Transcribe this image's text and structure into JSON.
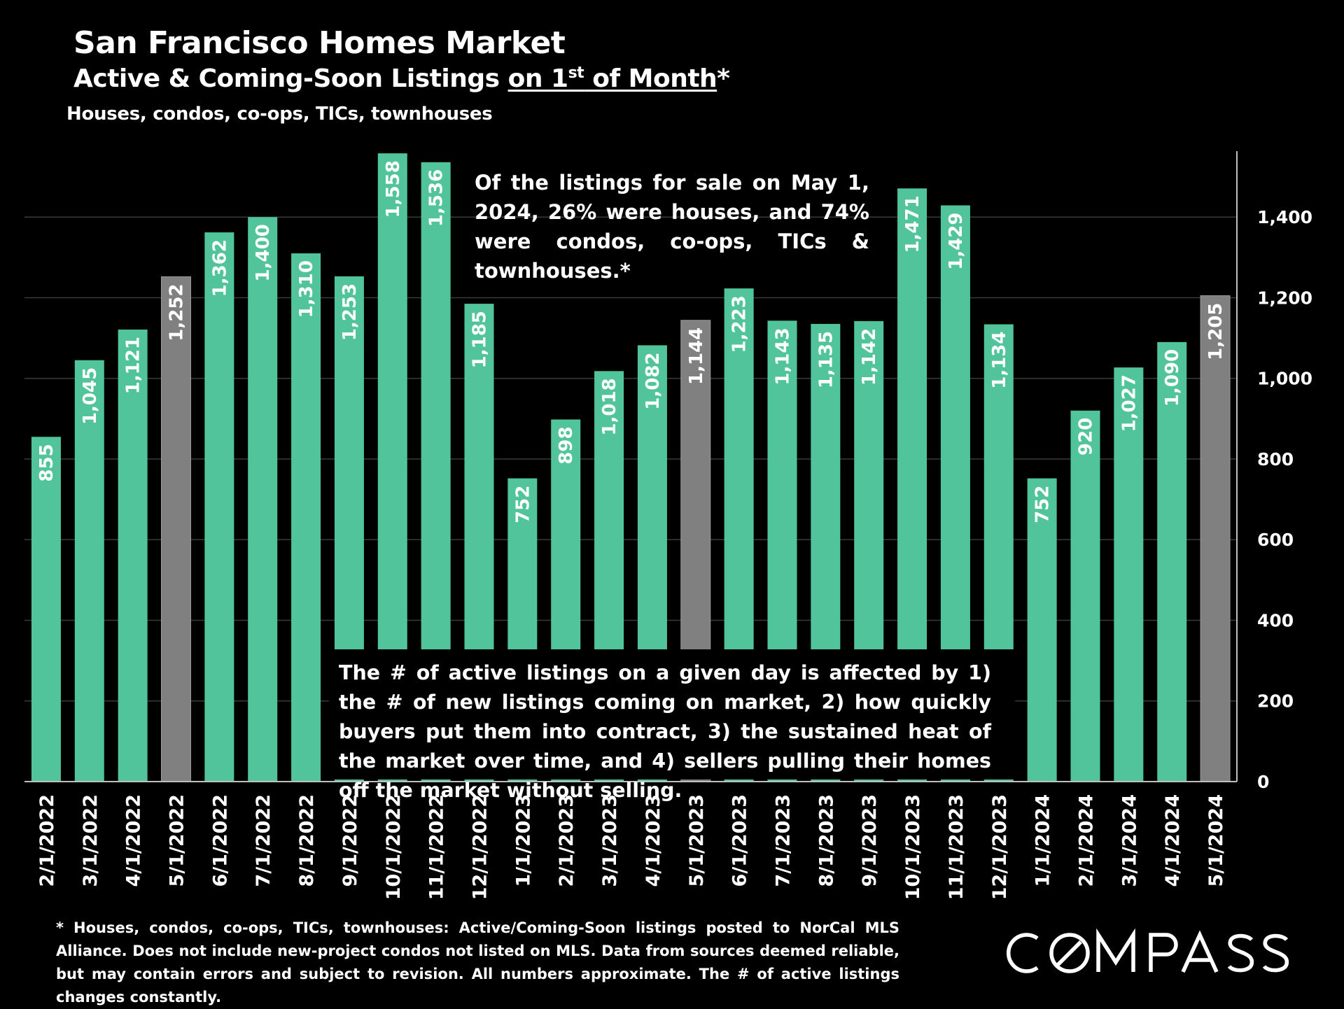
{
  "title": "San Francisco Homes Market",
  "subtitle": {
    "prefix": "Active & Coming-Soon Listings ",
    "underline_main": "on 1",
    "underline_sup": "st",
    "underline_end": " of Month",
    "suffix": "*"
  },
  "caption": "Houses, condos, co-ops, TICs, townhouses",
  "annotations": {
    "may_mix": "Of the listings for sale on May 1, 2024, 26% were houses, and 74% were condos, co-ops, TICs & townhouses.*",
    "factors": "The # of active listings on a given day is affected by 1) the # of new listings coming on market, 2) how quickly buyers put them into contract, 3) the sustained heat of the market over time, and 4) sellers pulling their homes off the market without selling."
  },
  "footnote": "* Houses, condos, co-ops, TICs, townhouses: Active/Coming-Soon listings posted to NorCal MLS Alliance. Does not include new-project condos not listed on MLS. Data from sources deemed reliable, but may contain errors and subject to revision. All numbers approximate. The # of active listings changes constantly.",
  "brand": {
    "logo_text": "COMPASS",
    "logo_letters": [
      "C",
      "O",
      "M",
      "P",
      "A",
      "S",
      "S"
    ]
  },
  "colors": {
    "background": "#000000",
    "bar": "#52c49b",
    "bar_highlight": "#808080",
    "text": "#ffffff",
    "grid": "#3a3a3a"
  },
  "chart_data": {
    "type": "bar",
    "categories": [
      "2/1/2022",
      "3/1/2022",
      "4/1/2022",
      "5/1/2022",
      "6/1/2022",
      "7/1/2022",
      "8/1/2022",
      "9/1/2022",
      "10/1/2022",
      "11/1/2022",
      "12/1/2022",
      "1/1/2023",
      "2/1/2023",
      "3/1/2023",
      "4/1/2023",
      "5/1/2023",
      "6/1/2023",
      "7/1/2023",
      "8/1/2023",
      "9/1/2023",
      "10/1/2023",
      "11/1/2023",
      "12/1/2023",
      "1/1/2024",
      "2/1/2024",
      "3/1/2024",
      "4/1/2024",
      "5/1/2024"
    ],
    "values": [
      855,
      1045,
      1121,
      1252,
      1362,
      1400,
      1310,
      1253,
      1558,
      1536,
      1185,
      752,
      898,
      1018,
      1082,
      1144,
      1223,
      1143,
      1135,
      1142,
      1471,
      1429,
      1134,
      752,
      920,
      1027,
      1090,
      1205
    ],
    "value_labels": [
      "855",
      "1,045",
      "1,121",
      "1,252",
      "1,362",
      "1,400",
      "1,310",
      "1,253",
      "1,558",
      "1,536",
      "1,185",
      "752",
      "898",
      "1,018",
      "1,082",
      "1,144",
      "1,223",
      "1,143",
      "1,135",
      "1,142",
      "1,471",
      "1,429",
      "1,134",
      "752",
      "920",
      "1,027",
      "1,090",
      "1,205"
    ],
    "highlight_categories": [
      "5/1/2022",
      "5/1/2023",
      "5/1/2024"
    ],
    "yaxis": {
      "position": "right",
      "ticks": [
        0,
        200,
        400,
        600,
        800,
        1000,
        1200,
        1400
      ],
      "tick_labels": [
        "0",
        "200",
        "400",
        "600",
        "800",
        "1,000",
        "1,200",
        "1,400"
      ],
      "ylim": [
        0,
        1560
      ]
    },
    "grid": true,
    "legend": "none"
  }
}
